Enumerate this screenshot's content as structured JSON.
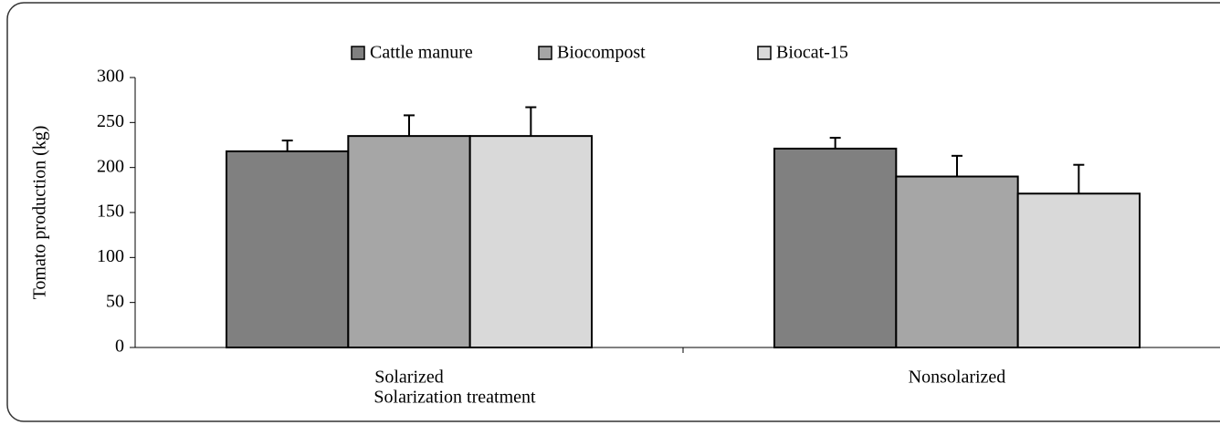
{
  "chart_data": {
    "type": "bar",
    "xlabel": "Solarization treatment",
    "ylabel": "Tomato production (kg)",
    "categories": [
      "Solarized",
      "Nonsolarized"
    ],
    "series": [
      {
        "name": "Cattle manure",
        "color": "#808080",
        "values": [
          218,
          221
        ],
        "errors": [
          12,
          12
        ]
      },
      {
        "name": "Biocompost",
        "color": "#a6a6a6",
        "values": [
          235,
          190
        ],
        "errors": [
          23,
          23
        ]
      },
      {
        "name": "Biocat-15",
        "color": "#d9d9d9",
        "values": [
          235,
          171
        ],
        "errors": [
          32,
          32
        ]
      }
    ],
    "ylim": [
      0,
      300
    ],
    "yticks": [
      0,
      50,
      100,
      150,
      200,
      250,
      300
    ],
    "legend": "top"
  }
}
